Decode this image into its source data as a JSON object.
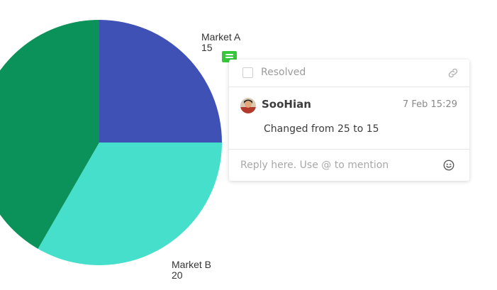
{
  "chart_data": {
    "type": "pie",
    "series": [
      {
        "label": "Market A",
        "value": 15
      },
      {
        "label": "Market B",
        "value": 20
      },
      {
        "label": "",
        "value": 25
      }
    ],
    "colors": [
      "#3f51b5",
      "#45dfcb",
      "#0b925a"
    ]
  },
  "labels": {
    "market_a_name": "Market A",
    "market_a_value": "15",
    "market_b_name": "Market B",
    "market_b_value": "20"
  },
  "comment": {
    "resolved_label": "Resolved",
    "resolved_checked": false,
    "author": "SooHian",
    "timestamp": "7 Feb 15:29",
    "text": "Changed from 25 to 15",
    "reply_placeholder": "Reply here. Use @ to mention"
  },
  "icons": {
    "marker": "comment-icon",
    "link": "link-icon",
    "emoji": "smiley-icon"
  },
  "colors": {
    "marker": "#35c83a"
  }
}
